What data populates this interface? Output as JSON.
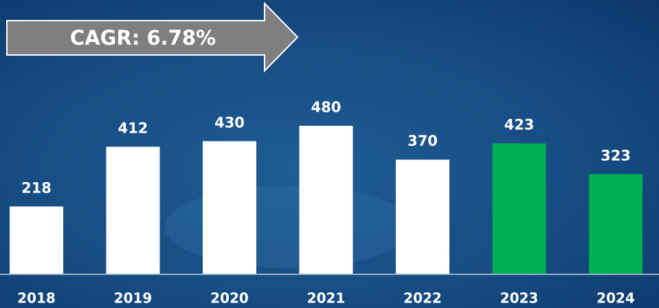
{
  "chart_data": {
    "type": "bar",
    "annotation": "CAGR: 6.78%",
    "categories": [
      "2018",
      "2019",
      "2020",
      "2021",
      "2022",
      "2023",
      "2024"
    ],
    "values": [
      218,
      412,
      430,
      480,
      370,
      423,
      323
    ],
    "colors": [
      "#ffffff",
      "#ffffff",
      "#ffffff",
      "#ffffff",
      "#ffffff",
      "#00b050",
      "#00b050"
    ]
  }
}
